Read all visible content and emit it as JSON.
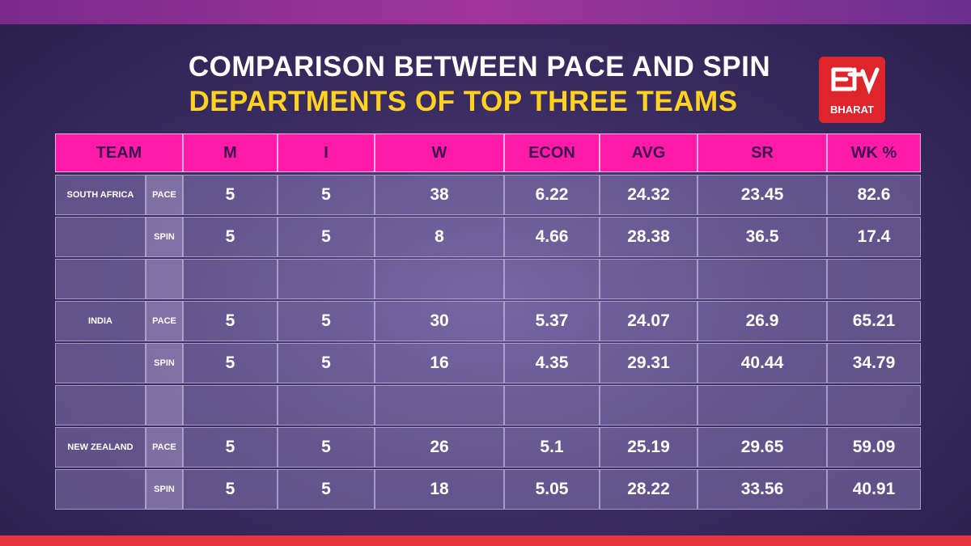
{
  "header": {
    "title_line1": "COMPARISON BETWEEN PACE AND SPIN",
    "title_line2": "DEPARTMENTS OF TOP THREE TEAMS",
    "logo_text": "BHARAT"
  },
  "table": {
    "columns": [
      "TEAM",
      "M",
      "I",
      "W",
      "ECON",
      "AVG",
      "SR",
      "WK %"
    ],
    "teams": [
      {
        "name": "SOUTH AFRICA",
        "rows": [
          {
            "type": "PACE",
            "values": [
              5,
              5,
              38,
              6.22,
              24.32,
              23.45,
              82.6
            ]
          },
          {
            "type": "SPIN",
            "values": [
              5,
              5,
              8,
              4.66,
              28.38,
              36.5,
              17.4
            ]
          }
        ]
      },
      {
        "name": "INDIA",
        "rows": [
          {
            "type": "PACE",
            "values": [
              5,
              5,
              30,
              5.37,
              24.07,
              26.9,
              65.21
            ]
          },
          {
            "type": "SPIN",
            "values": [
              5,
              5,
              16,
              4.35,
              29.31,
              40.44,
              34.79
            ]
          }
        ]
      },
      {
        "name": "NEW ZEALAND",
        "rows": [
          {
            "type": "PACE",
            "values": [
              5,
              5,
              26,
              5.1,
              25.19,
              29.65,
              59.09
            ]
          },
          {
            "type": "SPIN",
            "values": [
              5,
              5,
              18,
              5.05,
              28.22,
              33.56,
              40.91
            ]
          }
        ]
      }
    ]
  }
}
